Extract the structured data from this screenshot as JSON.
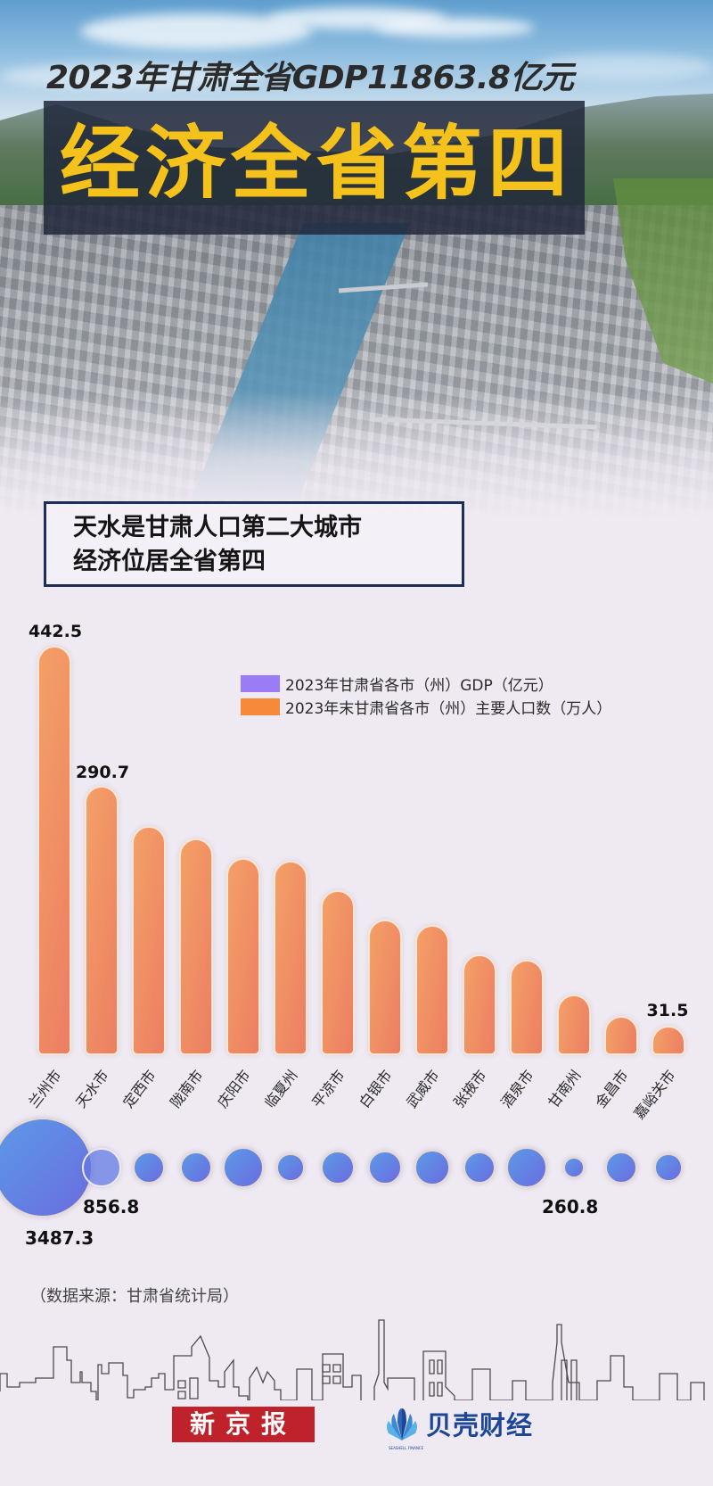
{
  "header": {
    "subtitle": "2023年甘肃全省GDP11863.8亿元",
    "title": "经济全省第四"
  },
  "callout": {
    "line1": "天水是甘肃人口第二大城市",
    "line2": "经济位居全省第四"
  },
  "legend": [
    {
      "label": "2023年甘肃省各市（州）GDP（亿元）",
      "color": "#9a7cf7"
    },
    {
      "label": "2023年末甘肃省各市（州）主要人口数（万人）",
      "color": "#f68a3a"
    }
  ],
  "labels": {
    "pop_top": "442.5",
    "pop_second": "290.7",
    "pop_last": "31.5",
    "gdp_top": "3487.3",
    "gdp_second": "856.8",
    "gdp_min": "260.8"
  },
  "source": "（数据来源：甘肃省统计局）",
  "logos": {
    "xinjingbao": "新京报",
    "beike": "贝壳财经",
    "beike_tag": "SEASHELL FINANCE"
  },
  "colors": {
    "title_yellow": "#f5c21b",
    "title_box": "#21283a",
    "bar": "#ef8a63",
    "bubble": "#6281e4",
    "callout_border": "#1e2e5c",
    "background": "#efeaf2",
    "xjb_red": "#c0222b",
    "beike_blue": "#1c4796"
  },
  "chart_data": {
    "type": "bar",
    "title": "天水是甘肃人口第二大城市 经济位居全省第四",
    "categories": [
      "兰州市",
      "天水市",
      "定西市",
      "陇南市",
      "庆阳市",
      "临夏州",
      "平凉市",
      "白银市",
      "武威市",
      "张掖市",
      "酒泉市",
      "甘南州",
      "金昌市",
      "嘉峪关市"
    ],
    "series": [
      {
        "name": "2023年末甘肃省各市（州）主要人口数（万人）",
        "type": "bar",
        "values": [
          442.5,
          290.7,
          248,
          234,
          213,
          210,
          178,
          147,
          141,
          109,
          103,
          66,
          42,
          31.5
        ]
      },
      {
        "name": "2023年甘肃省各市（州）GDP（亿元）",
        "type": "bubble",
        "values": [
          3487.3,
          856.8,
          600,
          600,
          1000,
          450,
          650,
          650,
          700,
          600,
          950,
          260.8,
          600,
          450
        ]
      }
    ],
    "labeled_values": {
      "兰州市": {
        "population": 442.5,
        "gdp": 3487.3
      },
      "天水市": {
        "population": 290.7,
        "gdp": 856.8
      },
      "甘南州": {
        "gdp": 260.8
      },
      "嘉峪关市": {
        "population": 31.5
      }
    },
    "xlabel": "",
    "ylabel": "",
    "grid": false,
    "legend_position": "upper right"
  }
}
